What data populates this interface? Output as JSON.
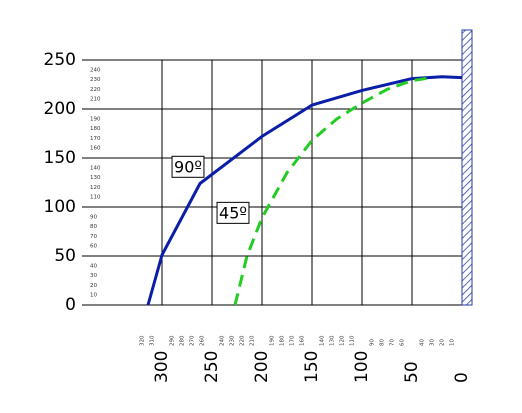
{
  "chart_data": {
    "type": "line",
    "xlim": [
      380,
      0
    ],
    "ylim": [
      0,
      250
    ],
    "xticks": [
      300,
      250,
      200,
      150,
      100,
      50,
      0
    ],
    "yticks": [
      0,
      50,
      100,
      150,
      200,
      250
    ],
    "xminor": [
      320,
      310,
      290,
      280,
      270,
      260,
      240,
      230,
      220,
      210,
      190,
      180,
      170,
      160,
      140,
      130,
      120,
      110,
      90,
      80,
      70,
      60,
      40,
      30,
      20,
      10
    ],
    "yminor": [
      10,
      20,
      30,
      40,
      60,
      70,
      80,
      90,
      110,
      120,
      130,
      140,
      160,
      170,
      180,
      190,
      210,
      220,
      230,
      240
    ],
    "grid": true,
    "series": [
      {
        "name": "90º",
        "color": "#0a1ea8",
        "dash": false,
        "x": [
          314,
          300,
          262,
          200,
          150,
          100,
          50,
          20,
          0
        ],
        "values": [
          0,
          51,
          124,
          172,
          204,
          219,
          231,
          233,
          232
        ]
      },
      {
        "name": "45º",
        "color": "#22cc22",
        "dash": true,
        "x": [
          227,
          215,
          200,
          175,
          150,
          125,
          100,
          75,
          50,
          30
        ],
        "values": [
          0,
          50,
          89,
          135,
          168,
          190,
          206,
          220,
          229,
          232
        ]
      }
    ],
    "annotations": [
      {
        "text": "90º",
        "x": 274,
        "y": 140
      },
      {
        "text": "45º",
        "x": 229,
        "y": 93
      }
    ]
  }
}
